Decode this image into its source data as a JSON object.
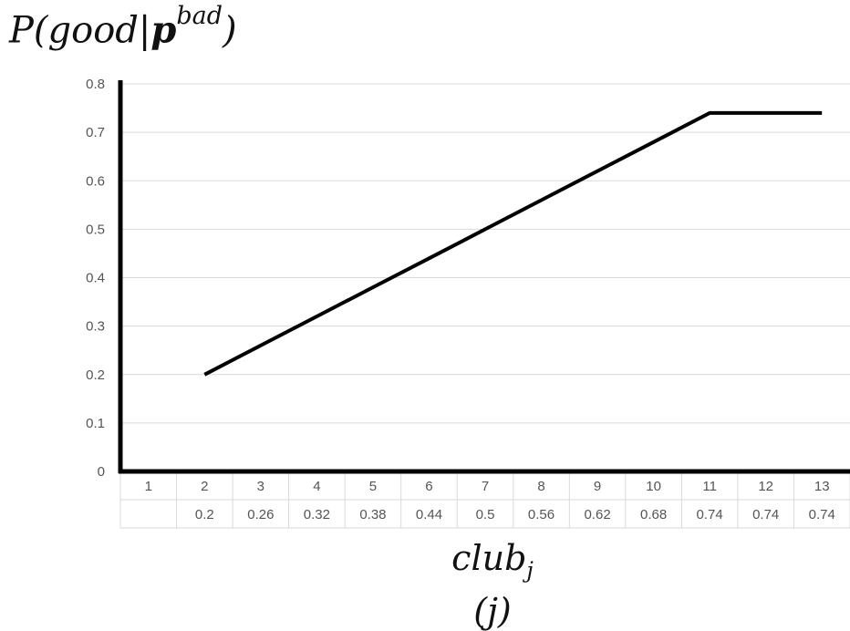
{
  "chart_data": {
    "type": "line",
    "ylabel_parts": {
      "prefix": "P(good|",
      "bold": "p",
      "sup": "bad",
      "suffix": ")"
    },
    "xlabel_parts": {
      "main": "club",
      "sub": "j",
      "second_line": "(j)"
    },
    "categories": [
      "1",
      "2",
      "3",
      "4",
      "5",
      "6",
      "7",
      "8",
      "9",
      "10",
      "11",
      "12",
      "13"
    ],
    "values": [
      null,
      0.2,
      0.26,
      0.32,
      0.38,
      0.44,
      0.5,
      0.56,
      0.62,
      0.68,
      0.74,
      0.74,
      0.74
    ],
    "table_row": [
      "",
      "0.2",
      "0.26",
      "0.32",
      "0.38",
      "0.44",
      "0.5",
      "0.56",
      "0.62",
      "0.68",
      "0.74",
      "0.74",
      "0.74"
    ],
    "yticks": [
      "0",
      "0.1",
      "0.2",
      "0.3",
      "0.4",
      "0.5",
      "0.6",
      "0.7",
      "0.8"
    ],
    "ylim": [
      0,
      0.8
    ],
    "grid": true,
    "line_color": "#000000",
    "grid_color": "#d9d9d9"
  }
}
